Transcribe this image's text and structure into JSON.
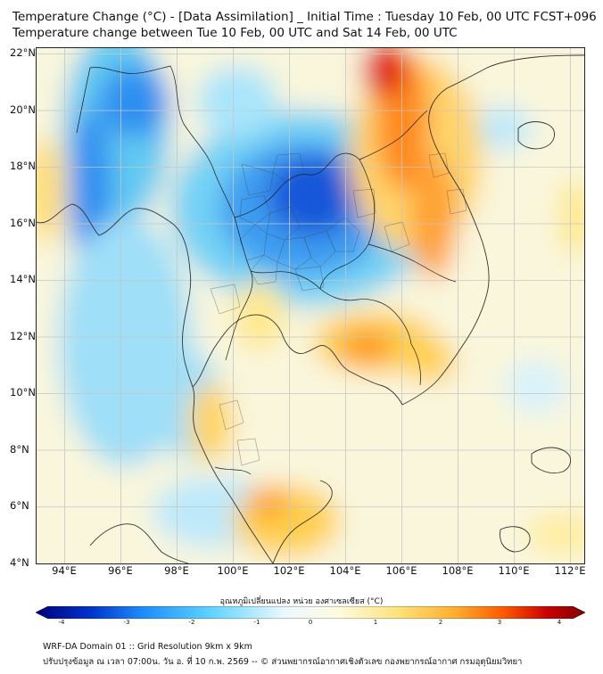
{
  "header": {
    "title_line1": "Temperature Change (°C) - [Data Assimilation] _ Initial Time : Tuesday 10 Feb, 00 UTC FCST+096",
    "title_line2": "Temperature change between Tue 10 Feb, 00 UTC and Sat 14 Feb, 00 UTC"
  },
  "map": {
    "lat_labels": [
      "22°N",
      "20°N",
      "18°N",
      "16°N",
      "14°N",
      "12°N",
      "10°N",
      "8°N",
      "6°N",
      "4°N"
    ],
    "lon_labels": [
      "94°E",
      "96°E",
      "98°E",
      "100°E",
      "102°E",
      "104°E",
      "106°E",
      "108°E",
      "110°E",
      "112°E"
    ],
    "lon_range": [
      93,
      112.5
    ],
    "lat_range": [
      4,
      22.2
    ],
    "background_color": "#f8f6df",
    "gridline_color": "#c8c8c8",
    "border_color": "#222222"
  },
  "colorbar": {
    "title": "อุณหภูมิเปลี่ยนแปลง หน่วย องศาเซลเซียส (°C)",
    "ticks": [
      "-4",
      "-3",
      "-2",
      "-1",
      "0",
      "1",
      "2",
      "3",
      "4"
    ],
    "range": [
      -4,
      4
    ],
    "colors": [
      "#00007f",
      "#0033cc",
      "#1e90ff",
      "#5fd4ff",
      "#eaf8ff",
      "#fffbe0",
      "#ffe27a",
      "#ffb02e",
      "#ff5a00",
      "#cc0000",
      "#800000"
    ]
  },
  "footer": {
    "line1": "WRF-DA Domain 01 :: Grid Resolution 9km x 9km",
    "line2": "ปรับปรุงข้อมูล ณ เวลา 07:00น. วัน อ. ที่ 10 ก.พ. 2569 -- © ส่วนพยากรณ์อากาศเชิงตัวเลข กองพยากรณ์อากาศ กรมอุตุนิยมวิทยา"
  }
}
